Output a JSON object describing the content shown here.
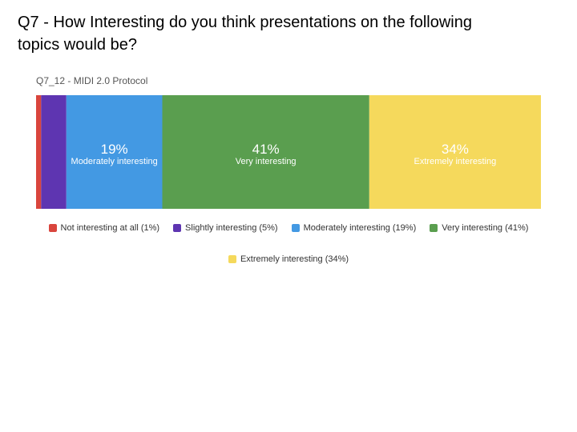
{
  "slide": {
    "title": "Q7 - How Interesting do you think presentations on the following topics would be?"
  },
  "chart_data": {
    "type": "bar",
    "orientation": "horizontal-stacked",
    "subtitle": "Q7_12 - MIDI 2.0 Protocol",
    "xlim": [
      0,
      100
    ],
    "grid": false,
    "legend_position": "bottom",
    "series": [
      {
        "name": "Not interesting at all",
        "value": 1,
        "color": "#d9453d",
        "legend": "Not interesting at all (1%)",
        "pct_label": "",
        "cat_label": ""
      },
      {
        "name": "Slightly interesting",
        "value": 5,
        "color": "#5e35b1",
        "legend": "Slightly interesting (5%)",
        "pct_label": "",
        "cat_label": ""
      },
      {
        "name": "Moderately interesting",
        "value": 19,
        "color": "#4399e3",
        "legend": "Moderately interesting (19%)",
        "pct_label": "19%",
        "cat_label": "Moderately interesting"
      },
      {
        "name": "Very interesting",
        "value": 41,
        "color": "#5a9e4f",
        "legend": "Very interesting (41%)",
        "pct_label": "41%",
        "cat_label": "Very interesting"
      },
      {
        "name": "Extremely interesting",
        "value": 34,
        "color": "#f5d95c",
        "legend": "Extremely interesting (34%)",
        "pct_label": "34%",
        "cat_label": "Extremely interesting"
      }
    ]
  }
}
